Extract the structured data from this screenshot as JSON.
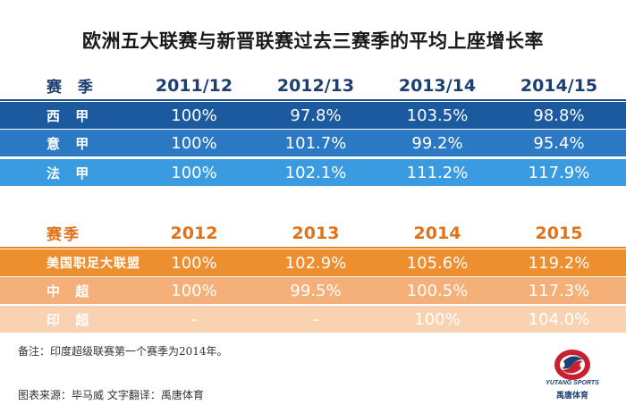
{
  "title": "欧洲五大联赛与新晋联赛过去三赛季的平均上座增长率",
  "colors": {
    "blue_dark": "#1c5aa0",
    "blue_mid": "#2b79c2",
    "blue_light": "#3a9be0",
    "orange_dark": "#ee8f2f",
    "orange_mid": "#f5b079",
    "orange_light": "#f9d2b2"
  },
  "chart_data": [
    {
      "type": "table",
      "header_label": "赛 季",
      "columns": [
        "2011/12",
        "2012/13",
        "2013/14",
        "2014/15"
      ],
      "rows": [
        {
          "label": "西 甲",
          "values": [
            "100%",
            "97.8%",
            "103.5%",
            "98.8%"
          ]
        },
        {
          "label": "意 甲",
          "values": [
            "100%",
            "101.7%",
            "99.2%",
            "95.4%"
          ]
        },
        {
          "label": "法 甲",
          "values": [
            "100%",
            "102.1%",
            "111.2%",
            "117.9%"
          ]
        }
      ]
    },
    {
      "type": "table",
      "header_label": "赛季",
      "columns": [
        "2012",
        "2013",
        "2014",
        "2015"
      ],
      "rows": [
        {
          "label": "美国职足大联盟",
          "values": [
            "100%",
            "102.9%",
            "105.6%",
            "119.2%"
          ]
        },
        {
          "label": "中 超",
          "values": [
            "100%",
            "99.5%",
            "100.5%",
            "117.3%"
          ]
        },
        {
          "label": "印 超",
          "values": [
            "-",
            "-",
            "100%",
            "104.0%"
          ]
        }
      ]
    }
  ],
  "note": "备注：印度超级联赛第一个赛季为2014年。",
  "source": "图表来源：毕马威 文字翻译：禹唐体育",
  "logo": {
    "icon": "yutang-sports-logo",
    "text_en": "YUTANG SPORTS",
    "text_cn": "禹唐体育"
  }
}
